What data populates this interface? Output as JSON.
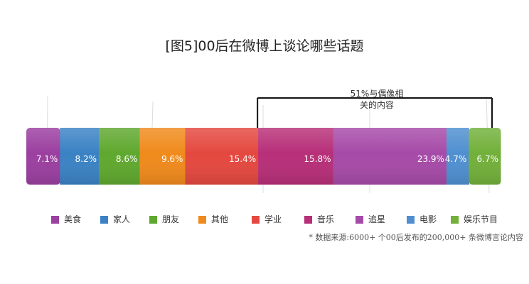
{
  "chart_data": {
    "type": "bar",
    "title": "[图5]00后在微博上谈论哪些话题",
    "categories": [
      "美食",
      "家人",
      "朋友",
      "其他",
      "学业",
      "音乐",
      "追星",
      "电影",
      "娱乐节目"
    ],
    "values": [
      7.1,
      8.2,
      8.6,
      9.6,
      15.4,
      15.8,
      23.9,
      4.7,
      6.7
    ],
    "value_labels": [
      "7.1%",
      "8.2%",
      "8.6%",
      "9.6%",
      "15.4%",
      "15.8%",
      "23.9%",
      "4.7%",
      "6.7%"
    ],
    "colors": [
      "#9b3fa0",
      "#3a82c4",
      "#5fa82e",
      "#f08a1c",
      "#e4483f",
      "#b72f78",
      "#a64aa8",
      "#4f8fd0",
      "#72b03a"
    ],
    "stacked": true,
    "orientation": "horizontal",
    "legend_position": "bottom",
    "annotation": {
      "text": "51%与偶像相\n关的内容",
      "bracket_from_category": "音乐",
      "bracket_to_category": "娱乐节目"
    },
    "grid": false
  },
  "source_note": "* 数据来源:6000+ 个00后发布的200,000+ 条微博言论内容"
}
